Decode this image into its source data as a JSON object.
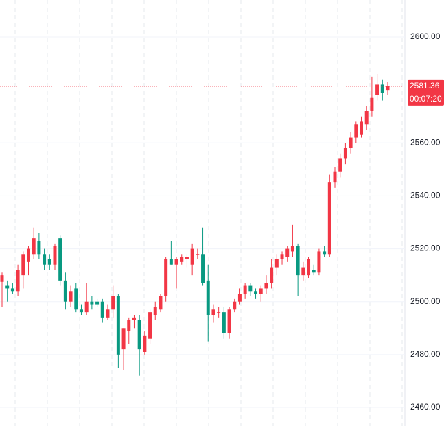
{
  "chart_data": {
    "type": "candlestick",
    "colors": {
      "up": "#f23645",
      "down": "#089981"
    },
    "candles": [
      [
        2507.5,
        2511,
        2498,
        2510
      ],
      [
        2506,
        2508,
        2500,
        2505
      ],
      [
        2505,
        2507,
        2503,
        2504
      ],
      [
        2504,
        2514,
        2502,
        2512
      ],
      [
        2510,
        2519,
        2505,
        2518
      ],
      [
        2515,
        2521,
        2510,
        2520
      ],
      [
        2518,
        2528,
        2516,
        2524
      ],
      [
        2523,
        2526,
        2516,
        2518
      ],
      [
        2518,
        2520,
        2512,
        2514
      ],
      [
        2516,
        2518,
        2512,
        2514
      ],
      [
        2514,
        2522,
        2512,
        2521
      ],
      [
        2524,
        2525,
        2506,
        2508
      ],
      [
        2508,
        2511,
        2497,
        2500
      ],
      [
        2500,
        2506,
        2498,
        2504
      ],
      [
        2505,
        2507,
        2496,
        2497
      ],
      [
        2497,
        2499,
        2495,
        2496
      ],
      [
        2496,
        2507,
        2495,
        2500
      ],
      [
        2500,
        2502,
        2497,
        2499
      ],
      [
        2500,
        2501,
        2498,
        2499
      ],
      [
        2500,
        2501,
        2492,
        2494
      ],
      [
        2494,
        2499,
        2493,
        2497
      ],
      [
        2497,
        2506,
        2494,
        2502
      ],
      [
        2502,
        2503,
        2475,
        2480
      ],
      [
        2482,
        2490,
        2474,
        2490
      ],
      [
        2489,
        2494,
        2484,
        2493
      ],
      [
        2493,
        2495,
        2490,
        2494
      ],
      [
        2493,
        2495,
        2472,
        2482
      ],
      [
        2481,
        2489,
        2480,
        2487
      ],
      [
        2486,
        2497,
        2484,
        2496
      ],
      [
        2495,
        2500,
        2493,
        2498
      ],
      [
        2497,
        2503,
        2496,
        2502
      ],
      [
        2502,
        2517,
        2500,
        2516
      ],
      [
        2516,
        2523,
        2514,
        2514
      ],
      [
        2514,
        2517,
        2505,
        2516
      ],
      [
        2515,
        2518,
        2514,
        2517
      ],
      [
        2516,
        2518,
        2513,
        2517
      ],
      [
        2514,
        2522,
        2510,
        2520
      ],
      [
        2518,
        2520,
        2516,
        2518
      ],
      [
        2518,
        2528,
        2506,
        2507
      ],
      [
        2508,
        2514,
        2485,
        2495
      ],
      [
        2495,
        2499,
        2492,
        2497
      ],
      [
        2496,
        2498,
        2494,
        2496
      ],
      [
        2496,
        2498,
        2486,
        2488
      ],
      [
        2488,
        2498,
        2486,
        2497
      ],
      [
        2497,
        2501,
        2496,
        2500
      ],
      [
        2500,
        2505,
        2499,
        2503
      ],
      [
        2503,
        2507,
        2501,
        2506
      ],
      [
        2506,
        2507,
        2502,
        2504
      ],
      [
        2504,
        2505,
        2501,
        2503
      ],
      [
        2503,
        2506,
        2500,
        2505
      ],
      [
        2505,
        2510,
        2503,
        2507
      ],
      [
        2507,
        2516,
        2505,
        2513
      ],
      [
        2513,
        2518,
        2510,
        2516
      ],
      [
        2516,
        2519,
        2514,
        2518
      ],
      [
        2517,
        2521,
        2515,
        2520
      ],
      [
        2519,
        2529,
        2517,
        2521
      ],
      [
        2521,
        2522,
        2502,
        2510
      ],
      [
        2510,
        2515,
        2508,
        2513
      ],
      [
        2510,
        2517,
        2509,
        2516
      ],
      [
        2512,
        2514,
        2510,
        2511
      ],
      [
        2511,
        2520,
        2510,
        2519
      ],
      [
        2519,
        2521,
        2517,
        2518
      ],
      [
        2518,
        2548,
        2517,
        2545
      ],
      [
        2545,
        2551,
        2543,
        2549
      ],
      [
        2549,
        2556,
        2547,
        2554
      ],
      [
        2554,
        2560,
        2552,
        2558
      ],
      [
        2558,
        2564,
        2556,
        2562
      ],
      [
        2562,
        2568,
        2560,
        2567
      ],
      [
        2563,
        2570,
        2562,
        2568
      ],
      [
        2567,
        2574,
        2565,
        2572
      ],
      [
        2572,
        2585,
        2570,
        2577
      ],
      [
        2578,
        2586,
        2576,
        2582
      ],
      [
        2582,
        2584,
        2576,
        2579
      ],
      [
        2580,
        2583,
        2578,
        2581.36
      ]
    ],
    "ylim": [
      2453,
      2614
    ],
    "yticks": [
      {
        "value": 2460,
        "label": "2460.00"
      },
      {
        "value": 2480,
        "label": "2480.00"
      },
      {
        "value": 2500,
        "label": "2500.00"
      },
      {
        "value": 2520,
        "label": "2520.00"
      },
      {
        "value": 2540,
        "label": "2540.00"
      },
      {
        "value": 2560,
        "label": "2560.00"
      },
      {
        "value": 2600,
        "label": "2600.00"
      }
    ],
    "last_price": 2581.36,
    "countdown": "00:07:20"
  }
}
